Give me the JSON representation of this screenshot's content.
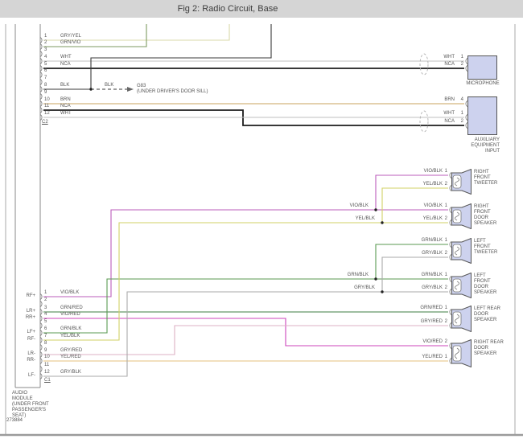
{
  "header": {
    "title": "Fig 2: Radio Circuit, Base"
  },
  "page": {
    "figure_id": "273884"
  },
  "audio_module": {
    "label_lines": [
      "AUDIO",
      "MODULE",
      "(UNDER FRONT",
      "PASSENGER'S",
      "SEAT)"
    ],
    "connector_c2": {
      "id": "C2",
      "pins": [
        {
          "n": "1",
          "wire": "GRY/YEL"
        },
        {
          "n": "2",
          "wire": "GRN/VIO"
        },
        {
          "n": "3",
          "wire": ""
        },
        {
          "n": "4",
          "wire": "WHT"
        },
        {
          "n": "5",
          "wire": "NCA"
        },
        {
          "n": "6",
          "wire": ""
        },
        {
          "n": "7",
          "wire": ""
        },
        {
          "n": "8",
          "wire": "BLK"
        },
        {
          "n": "9",
          "wire": ""
        },
        {
          "n": "10",
          "wire": "BRN"
        },
        {
          "n": "11",
          "wire": "NCA"
        },
        {
          "n": "12",
          "wire": "WHT"
        }
      ]
    },
    "connector_c1": {
      "id": "C1",
      "pins": [
        {
          "n": "1",
          "wire": "VIO/BLK",
          "signal": "RF+"
        },
        {
          "n": "2",
          "wire": "",
          "signal": ""
        },
        {
          "n": "3",
          "wire": "GRN/RED",
          "signal": "LR+"
        },
        {
          "n": "4",
          "wire": "VIO/RED",
          "signal": "RR+"
        },
        {
          "n": "5",
          "wire": "",
          "signal": ""
        },
        {
          "n": "6",
          "wire": "GRN/BLK",
          "signal": "LF+"
        },
        {
          "n": "7",
          "wire": "YEL/BLK",
          "signal": "RF-"
        },
        {
          "n": "8",
          "wire": "",
          "signal": ""
        },
        {
          "n": "9",
          "wire": "GRY/RED",
          "signal": "LR-"
        },
        {
          "n": "10",
          "wire": "YEL/RED",
          "signal": "RR-"
        },
        {
          "n": "11",
          "wire": "",
          "signal": ""
        },
        {
          "n": "12",
          "wire": "GRY/BLK",
          "signal": "LF-"
        }
      ]
    }
  },
  "ground": {
    "wire_label": "BLK",
    "id": "G83",
    "location": "(UNDER DRIVER'S DOOR SILL)"
  },
  "mid_labels": [
    "VIO/BLK",
    "YEL/BLK",
    "GRN/BLK",
    "GRY/BLK"
  ],
  "devices": [
    {
      "key": "microphone",
      "name_lines": [
        "MICROPHONE"
      ],
      "pins": [
        {
          "wire": "WHT",
          "n": "1"
        },
        {
          "wire": "NCA",
          "n": "2"
        }
      ]
    },
    {
      "key": "aux-input",
      "name_lines": [
        "AUXILIARY",
        "EQUIPMENT",
        "INPUT"
      ],
      "pins": [
        {
          "wire": "BRN",
          "n": "4"
        },
        {
          "wire": "WHT",
          "n": "1"
        },
        {
          "wire": "NCA",
          "n": "2"
        }
      ]
    },
    {
      "key": "right-front-tweeter",
      "name_lines": [
        "RIGHT",
        "FRONT",
        "TWEETER"
      ],
      "pins": [
        {
          "wire": "VIO/BLK",
          "n": "1"
        },
        {
          "wire": "YEL/BLK",
          "n": "2"
        }
      ]
    },
    {
      "key": "right-front-door-speaker",
      "name_lines": [
        "RIGHT",
        "FRONT",
        "DOOR",
        "SPEAKER"
      ],
      "pins": [
        {
          "wire": "VIO/BLK",
          "n": "1"
        },
        {
          "wire": "YEL/BLK",
          "n": "2"
        }
      ]
    },
    {
      "key": "left-front-tweeter",
      "name_lines": [
        "LEFT",
        "FRONT",
        "TWEETER"
      ],
      "pins": [
        {
          "wire": "GRN/BLK",
          "n": "1"
        },
        {
          "wire": "GRY/BLK",
          "n": "2"
        }
      ]
    },
    {
      "key": "left-front-door-speaker",
      "name_lines": [
        "LEFT",
        "FRONT",
        "DOOR",
        "SPEAKER"
      ],
      "pins": [
        {
          "wire": "GRN/BLK",
          "n": "1"
        },
        {
          "wire": "GRY/BLK",
          "n": "2"
        }
      ]
    },
    {
      "key": "left-rear-door-speaker",
      "name_lines": [
        "LEFT REAR",
        "DOOR",
        "SPEAKER"
      ],
      "pins": [
        {
          "wire": "GRN/RED",
          "n": "1"
        },
        {
          "wire": "GRY/RED",
          "n": "2"
        }
      ]
    },
    {
      "key": "right-rear-door-speaker",
      "name_lines": [
        "RIGHT REAR",
        "DOOR",
        "SPEAKER"
      ],
      "pins": [
        {
          "wire": "VIO/RED",
          "n": "2"
        },
        {
          "wire": "YEL/RED",
          "n": "1"
        }
      ]
    }
  ],
  "colors": {
    "GRY/YEL": "#d9d9a9",
    "GRN/VIO": "#7d9a60",
    "WHT": "#bfbfbf",
    "NCA": "#1c1c1c",
    "BLK": "#3a3a3a",
    "BRN": "#c9a35e",
    "VIO/BLK": "#bb5cbb",
    "YEL/BLK": "#d2d266",
    "GRN/BLK": "#5a9a52",
    "GRY/BLK": "#aaaaaa",
    "GRN/RED": "#3e7c40",
    "VIO/RED": "#cc44bb",
    "GRY/RED": "#dcb0c4",
    "YEL/RED": "#e6c27c",
    "device_fill": "#cdd2ee",
    "device_border": "#555555",
    "header_bg": "#d5d5d5",
    "line": "#888888"
  }
}
